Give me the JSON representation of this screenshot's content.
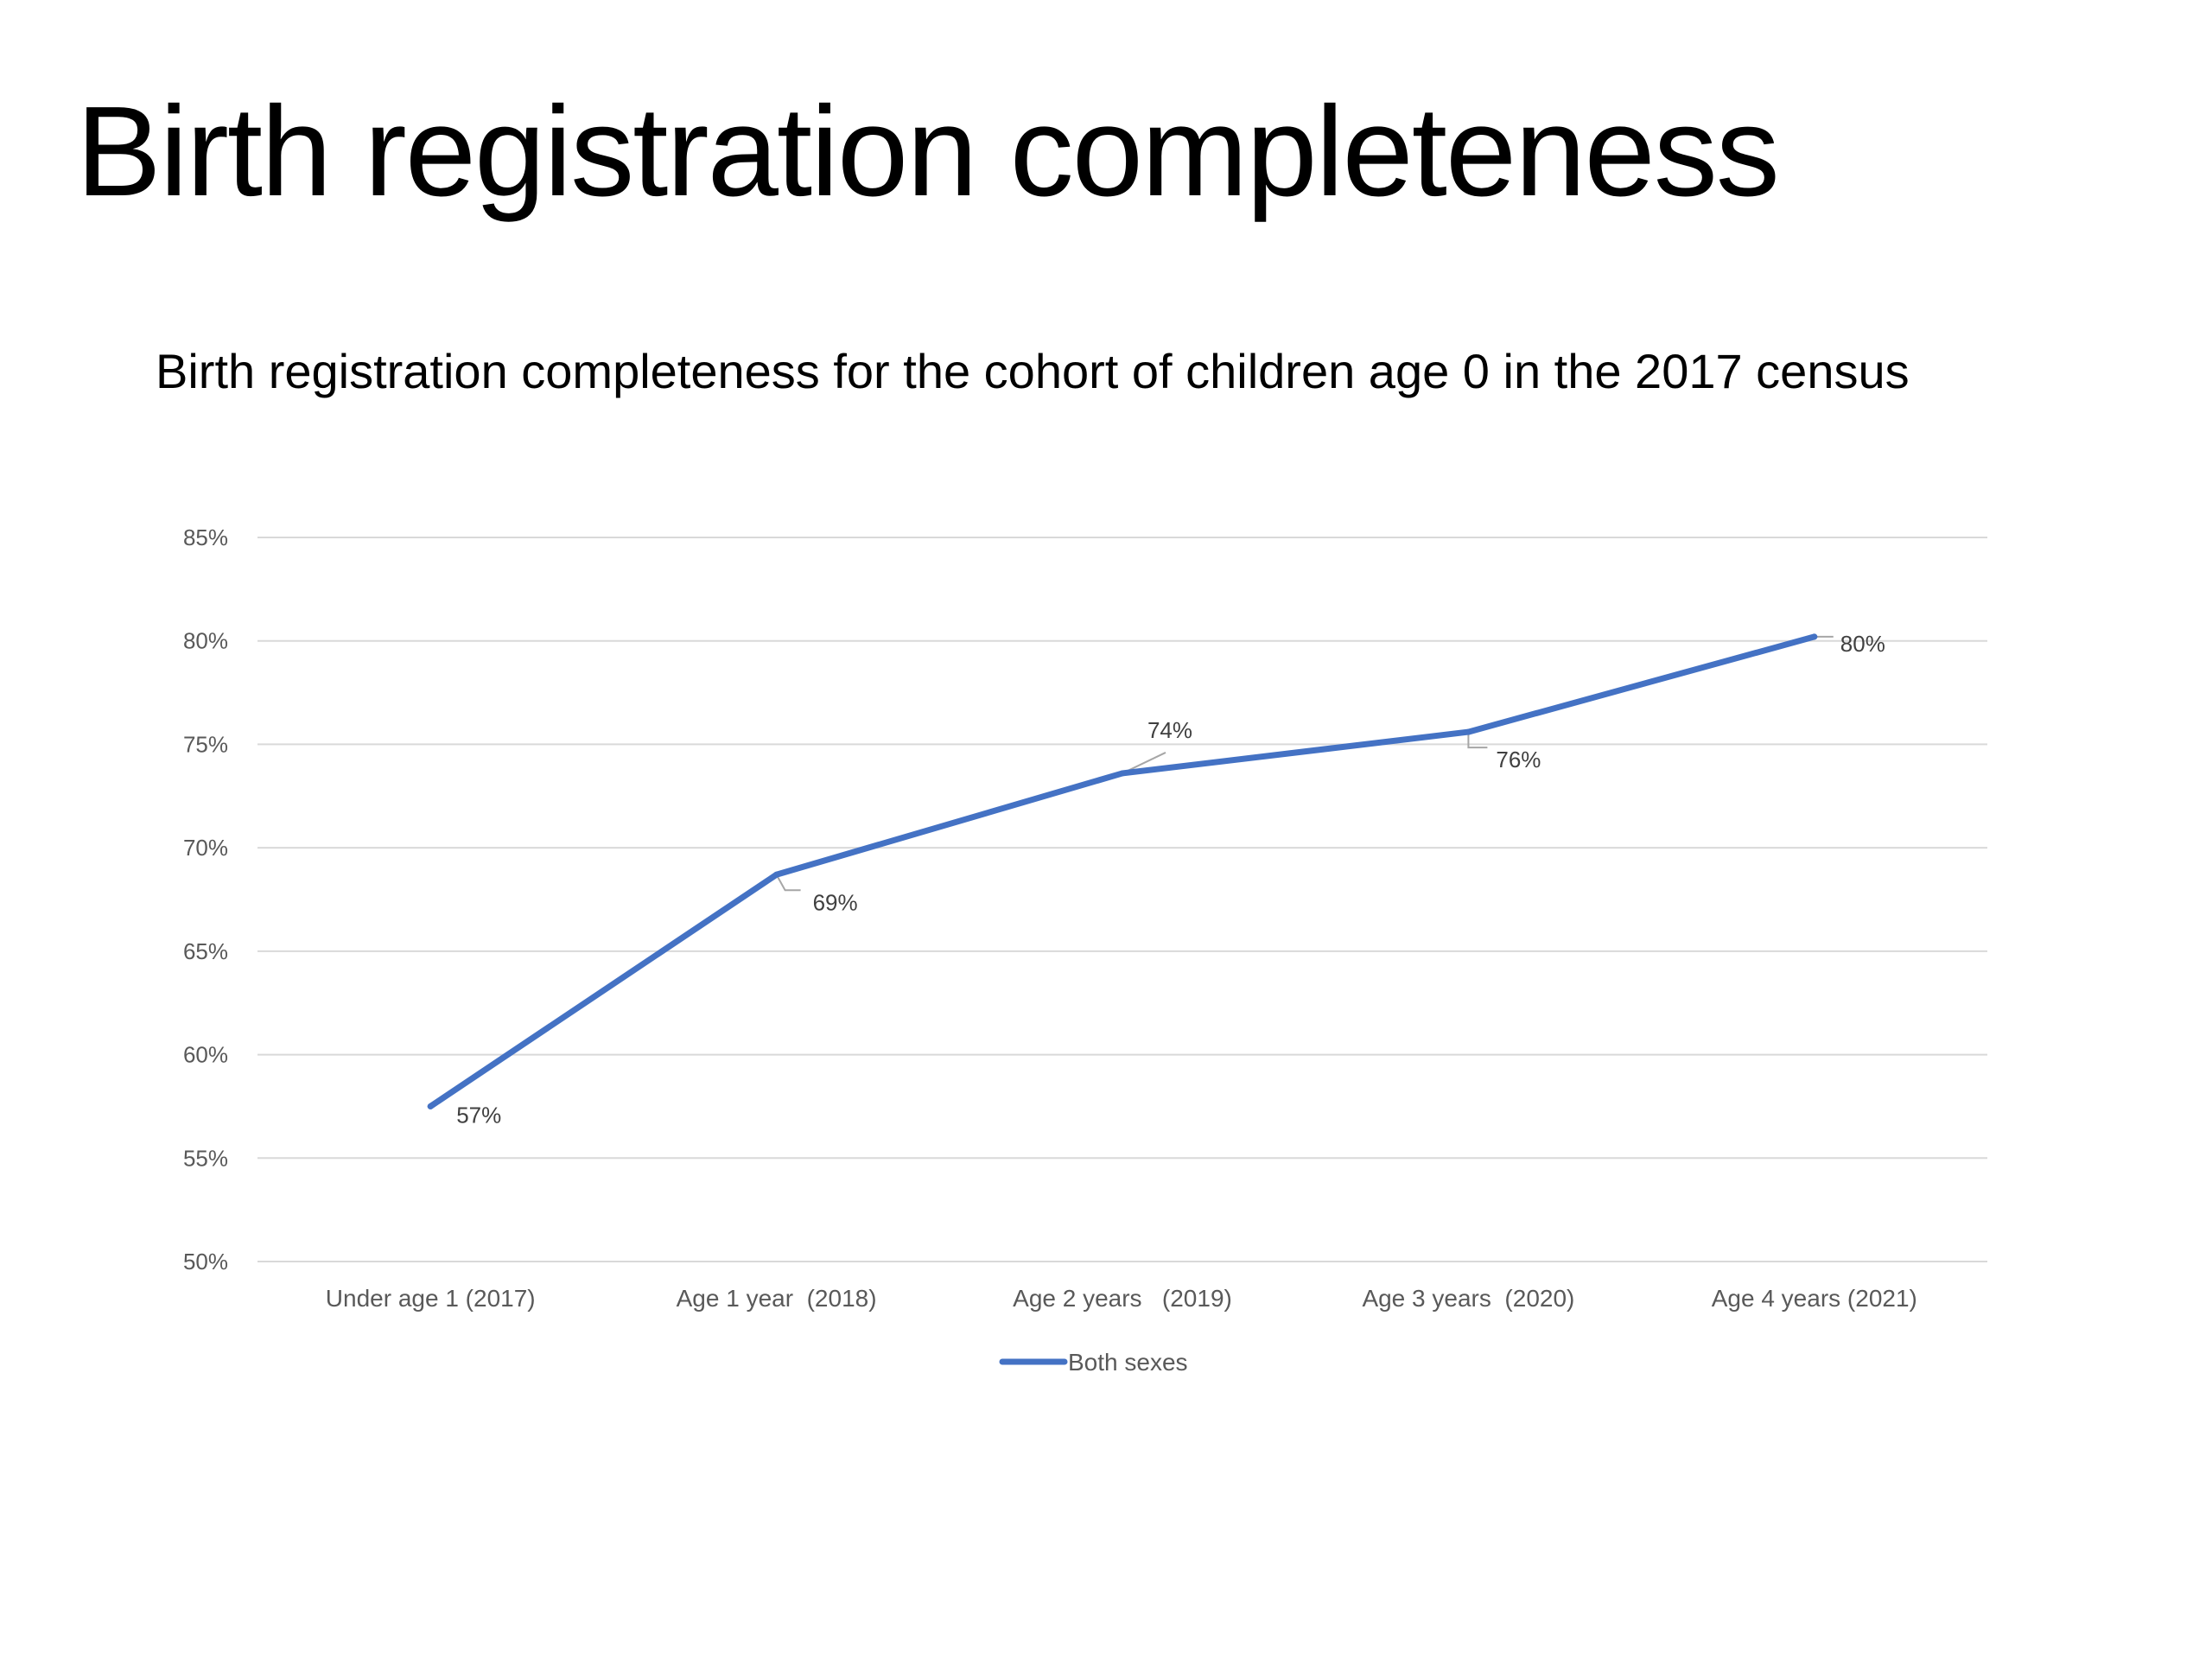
{
  "slide": {
    "title": "Birth registration completeness"
  },
  "chart_data": {
    "type": "line",
    "title": "Birth registration completeness for the cohort of children age 0 in the 2017 census",
    "categories": [
      "Under age 1 (2017)",
      "Age 1 year  (2018)",
      "Age 2 years   (2019)",
      "Age 3 years  (2020)",
      "Age 4 years (2021)"
    ],
    "series": [
      {
        "name": "Both sexes",
        "values": [
          57.5,
          68.7,
          73.6,
          75.6,
          80.2
        ],
        "data_labels": [
          "57%",
          "69%",
          "74%",
          "76%",
          "80%"
        ],
        "color": "#4472C4"
      }
    ],
    "yticks": [
      "50%",
      "55%",
      "60%",
      "65%",
      "70%",
      "75%",
      "80%",
      "85%"
    ],
    "ylim": [
      50,
      85
    ],
    "xlabel": "",
    "ylabel": "",
    "grid": true,
    "legend": "bottom",
    "gridline_color": "#D9D9D9"
  }
}
